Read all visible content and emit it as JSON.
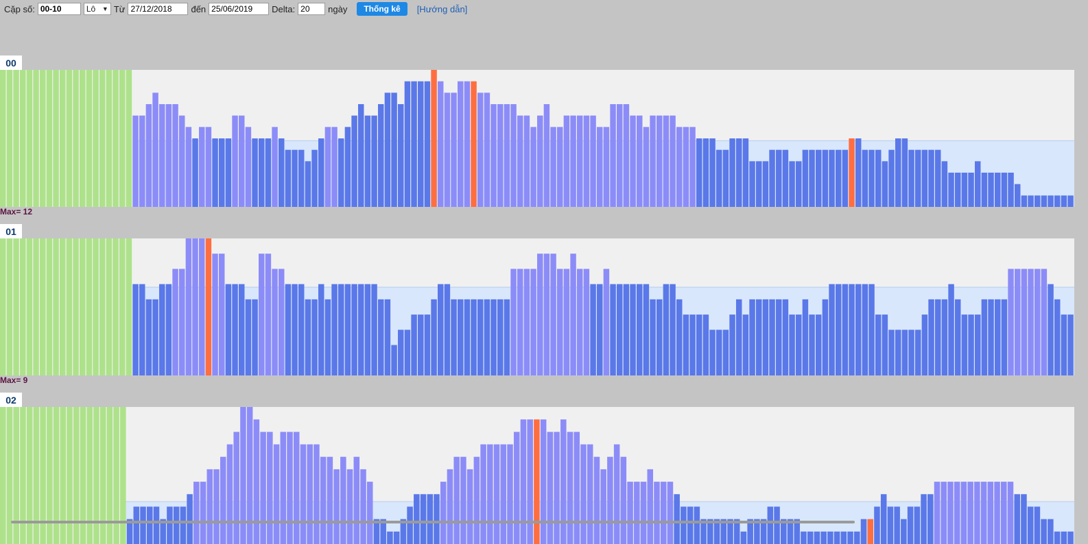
{
  "toolbar": {
    "pair_label": "Cặp số:",
    "pair_value": "00-10",
    "type_value": "Lô",
    "from_label": "Từ",
    "from_value": "27/12/2018",
    "to_label": "đến",
    "to_value": "25/06/2019",
    "delta_label": "Delta:",
    "delta_value": "20",
    "days_label": "ngày",
    "stats_button": "Thống kê",
    "guide_link": "[Hướng dẫn]"
  },
  "colors": {
    "warmup": "#aee28a",
    "above": "#8c8cf8",
    "below": "#5a78e8",
    "peak": "#ff6e40",
    "panel_bg": "#f0f0f0",
    "avg_band": "#d8e7fb"
  },
  "chart_data": [
    {
      "type": "bar",
      "name": "00",
      "max_label": "Max= 12",
      "ymax": 12,
      "warmup_bars": 20,
      "mean": 5.8,
      "values": [
        12,
        12,
        12,
        12,
        12,
        12,
        12,
        12,
        12,
        12,
        12,
        12,
        12,
        12,
        12,
        12,
        12,
        12,
        12,
        12,
        8,
        8,
        9,
        10,
        9,
        9,
        9,
        8,
        7,
        6,
        7,
        7,
        6,
        6,
        6,
        8,
        8,
        7,
        6,
        6,
        6,
        7,
        6,
        5,
        5,
        5,
        4,
        5,
        6,
        7,
        7,
        6,
        7,
        8,
        9,
        8,
        8,
        9,
        10,
        10,
        9,
        11,
        11,
        11,
        11,
        12,
        11,
        10,
        10,
        11,
        11,
        11,
        10,
        10,
        9,
        9,
        9,
        9,
        8,
        8,
        7,
        8,
        9,
        7,
        7,
        8,
        8,
        8,
        8,
        8,
        7,
        7,
        9,
        9,
        9,
        8,
        8,
        7,
        8,
        8,
        8,
        8,
        7,
        7,
        7,
        6,
        6,
        6,
        5,
        5,
        6,
        6,
        6,
        4,
        4,
        4,
        5,
        5,
        5,
        4,
        4,
        5,
        5,
        5,
        5,
        5,
        5,
        5,
        6,
        6,
        5,
        5,
        5,
        4,
        5,
        6,
        6,
        5,
        5,
        5,
        5,
        5,
        4,
        3,
        3,
        3,
        3,
        4,
        3,
        3,
        3,
        3,
        3,
        2,
        1,
        1,
        1,
        1,
        1,
        1,
        1,
        1
      ],
      "peaks": [
        65,
        71,
        128
      ]
    },
    {
      "type": "bar",
      "name": "01",
      "max_label": "Max= 9",
      "ymax": 9,
      "warmup_bars": 20,
      "mean": 5.8,
      "values": [
        9,
        9,
        9,
        9,
        9,
        9,
        9,
        9,
        9,
        9,
        9,
        9,
        9,
        9,
        9,
        9,
        9,
        9,
        9,
        9,
        6,
        6,
        5,
        5,
        6,
        6,
        7,
        7,
        9,
        9,
        9,
        9,
        8,
        8,
        6,
        6,
        6,
        5,
        5,
        8,
        8,
        7,
        7,
        6,
        6,
        6,
        5,
        5,
        6,
        5,
        6,
        6,
        6,
        6,
        6,
        6,
        6,
        5,
        5,
        2,
        3,
        3,
        4,
        4,
        4,
        5,
        6,
        6,
        5,
        5,
        5,
        5,
        5,
        5,
        5,
        5,
        5,
        7,
        7,
        7,
        7,
        8,
        8,
        8,
        7,
        7,
        8,
        7,
        7,
        6,
        6,
        7,
        6,
        6,
        6,
        6,
        6,
        6,
        5,
        5,
        6,
        6,
        5,
        4,
        4,
        4,
        4,
        3,
        3,
        3,
        4,
        5,
        4,
        5,
        5,
        5,
        5,
        5,
        5,
        4,
        4,
        5,
        4,
        4,
        5,
        6,
        6,
        6,
        6,
        6,
        6,
        6,
        4,
        4,
        3,
        3,
        3,
        3,
        3,
        4,
        5,
        5,
        5,
        6,
        5,
        4,
        4,
        4,
        5,
        5,
        5,
        5,
        7,
        7,
        7,
        7,
        7,
        7,
        6,
        5,
        4,
        4
      ],
      "peaks": [
        31
      ]
    },
    {
      "type": "bar",
      "name": "02",
      "max_label": "",
      "ymax": 11,
      "warmup_bars": 18,
      "mean": 3.4,
      "values": [
        11,
        11,
        11,
        11,
        11,
        11,
        11,
        11,
        11,
        11,
        11,
        11,
        11,
        11,
        11,
        11,
        11,
        11,
        11,
        2,
        3,
        3,
        3,
        3,
        2,
        3,
        3,
        3,
        4,
        5,
        5,
        6,
        6,
        7,
        8,
        9,
        11,
        11,
        10,
        9,
        9,
        8,
        9,
        9,
        9,
        8,
        8,
        8,
        7,
        7,
        6,
        7,
        6,
        7,
        6,
        5,
        2,
        2,
        1,
        1,
        2,
        3,
        4,
        4,
        4,
        4,
        5,
        6,
        7,
        7,
        6,
        7,
        8,
        8,
        8,
        8,
        8,
        9,
        10,
        10,
        10,
        10,
        9,
        9,
        10,
        9,
        9,
        8,
        8,
        7,
        6,
        7,
        8,
        7,
        5,
        5,
        5,
        6,
        5,
        5,
        5,
        4,
        3,
        3,
        3,
        2,
        2,
        2,
        2,
        2,
        2,
        1,
        2,
        2,
        2,
        3,
        3,
        2,
        2,
        2,
        1,
        1,
        1,
        1,
        1,
        1,
        1,
        1,
        1,
        2,
        2,
        3,
        4,
        3,
        3,
        2,
        3,
        3,
        4,
        4,
        5,
        5,
        5,
        5,
        5,
        5,
        5,
        5,
        5,
        5,
        5,
        5,
        4,
        4,
        3,
        3,
        2,
        2,
        1,
        1,
        1
      ],
      "peaks": [
        80,
        130
      ]
    }
  ]
}
